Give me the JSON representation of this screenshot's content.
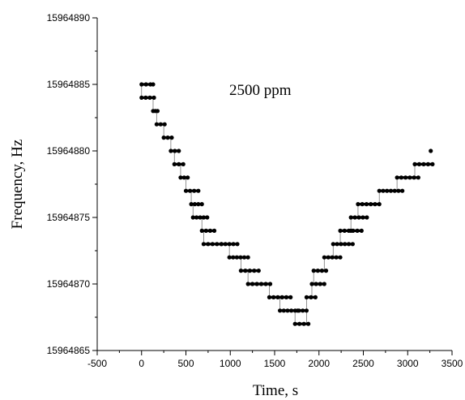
{
  "chart_data": {
    "type": "scatter",
    "title": "",
    "annotation": "2500 ppm",
    "xlabel": "Time, s",
    "ylabel": "Frequency, Hz",
    "xlim": [
      -500,
      3500
    ],
    "ylim": [
      15964865,
      15964890
    ],
    "x_ticks": [
      "-500",
      "0",
      "500",
      "1000",
      "1500",
      "2000",
      "2500",
      "3000",
      "3500"
    ],
    "y_ticks": [
      "15964865",
      "15964870",
      "15964875",
      "15964880",
      "15964885",
      "15964890"
    ],
    "grid": false,
    "legend": "none",
    "marker_color": "#000000",
    "segments": [
      {
        "x_start": 0,
        "x_end": 100,
        "y": 15964885
      },
      {
        "x_start": 0,
        "x_end": 140,
        "y": 15964884
      },
      {
        "x_start": 130,
        "x_end": 180,
        "y": 15964883
      },
      {
        "x_start": 170,
        "x_end": 260,
        "y": 15964882
      },
      {
        "x_start": 250,
        "x_end": 340,
        "y": 15964881
      },
      {
        "x_start": 330,
        "x_end": 420,
        "y": 15964880
      },
      {
        "x_start": 370,
        "x_end": 470,
        "y": 15964879
      },
      {
        "x_start": 440,
        "x_end": 520,
        "y": 15964878
      },
      {
        "x_start": 500,
        "x_end": 640,
        "y": 15964877
      },
      {
        "x_start": 560,
        "x_end": 680,
        "y": 15964876
      },
      {
        "x_start": 580,
        "x_end": 740,
        "y": 15964875
      },
      {
        "x_start": 680,
        "x_end": 820,
        "y": 15964874
      },
      {
        "x_start": 700,
        "x_end": 900,
        "y": 15964873
      },
      {
        "x_start": 900,
        "x_end": 1080,
        "y": 15964873
      },
      {
        "x_start": 990,
        "x_end": 1200,
        "y": 15964872
      },
      {
        "x_start": 1120,
        "x_end": 1320,
        "y": 15964871
      },
      {
        "x_start": 1200,
        "x_end": 1450,
        "y": 15964870
      },
      {
        "x_start": 1440,
        "x_end": 1680,
        "y": 15964869
      },
      {
        "x_start": 1560,
        "x_end": 1860,
        "y": 15964868
      },
      {
        "x_start": 1730,
        "x_end": 1880,
        "y": 15964867
      },
      {
        "x_start": 1860,
        "x_end": 1960,
        "y": 15964869
      },
      {
        "x_start": 1920,
        "x_end": 2060,
        "y": 15964870
      },
      {
        "x_start": 1940,
        "x_end": 2080,
        "y": 15964871
      },
      {
        "x_start": 2060,
        "x_end": 2240,
        "y": 15964872
      },
      {
        "x_start": 2160,
        "x_end": 2380,
        "y": 15964873
      },
      {
        "x_start": 2240,
        "x_end": 2480,
        "y": 15964874
      },
      {
        "x_start": 2360,
        "x_end": 2540,
        "y": 15964875
      },
      {
        "x_start": 2440,
        "x_end": 2680,
        "y": 15964876
      },
      {
        "x_start": 2680,
        "x_end": 2940,
        "y": 15964877
      },
      {
        "x_start": 2880,
        "x_end": 3120,
        "y": 15964878
      },
      {
        "x_start": 3080,
        "x_end": 3280,
        "y": 15964879
      }
    ],
    "points": [
      {
        "x": 3260,
        "y": 15964880
      },
      {
        "x": 130,
        "y": 15964885
      },
      {
        "x": 1760,
        "y": 15964868
      },
      {
        "x": 2360,
        "y": 15964874
      }
    ]
  }
}
